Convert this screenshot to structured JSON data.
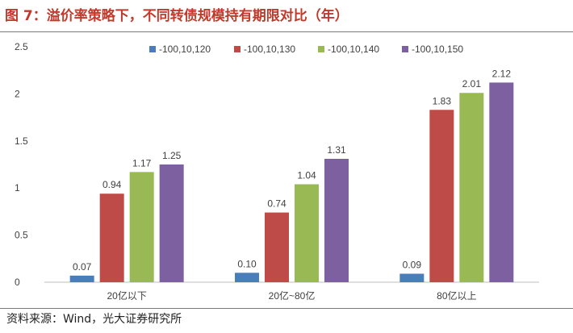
{
  "figure": {
    "title": "图 7：溢价率策略下，不同转债规模持有期限对比（年）",
    "source": "资料来源：Wind，光大证券研究所"
  },
  "chart_data": {
    "type": "bar",
    "categories": [
      "20亿以下",
      "20亿~80亿",
      "80亿以上"
    ],
    "series": [
      {
        "name": "-100,10,120",
        "values": [
          0.07,
          0.1,
          0.09
        ],
        "labels": [
          "0.07",
          "0.10",
          "0.09"
        ],
        "color": "#4a7ebb"
      },
      {
        "name": "-100,10,130",
        "values": [
          0.94,
          0.74,
          1.83
        ],
        "labels": [
          "0.94",
          "0.74",
          "1.83"
        ],
        "color": "#be4b48"
      },
      {
        "name": "-100,10,140",
        "values": [
          1.17,
          1.04,
          2.01
        ],
        "labels": [
          "1.17",
          "1.04",
          "2.01"
        ],
        "color": "#98b954"
      },
      {
        "name": "-100,10,150",
        "values": [
          1.25,
          1.31,
          2.12
        ],
        "labels": [
          "1.25",
          "1.31",
          "2.12"
        ],
        "color": "#7d60a0"
      }
    ],
    "ylim": [
      0,
      2.5
    ],
    "yticks": [
      0,
      0.5,
      1,
      1.5,
      2,
      2.5
    ],
    "ytick_labels": [
      "0",
      "0.5",
      "1",
      "1.5",
      "2",
      "2.5"
    ],
    "legend_position": "top-right",
    "grid": false
  }
}
